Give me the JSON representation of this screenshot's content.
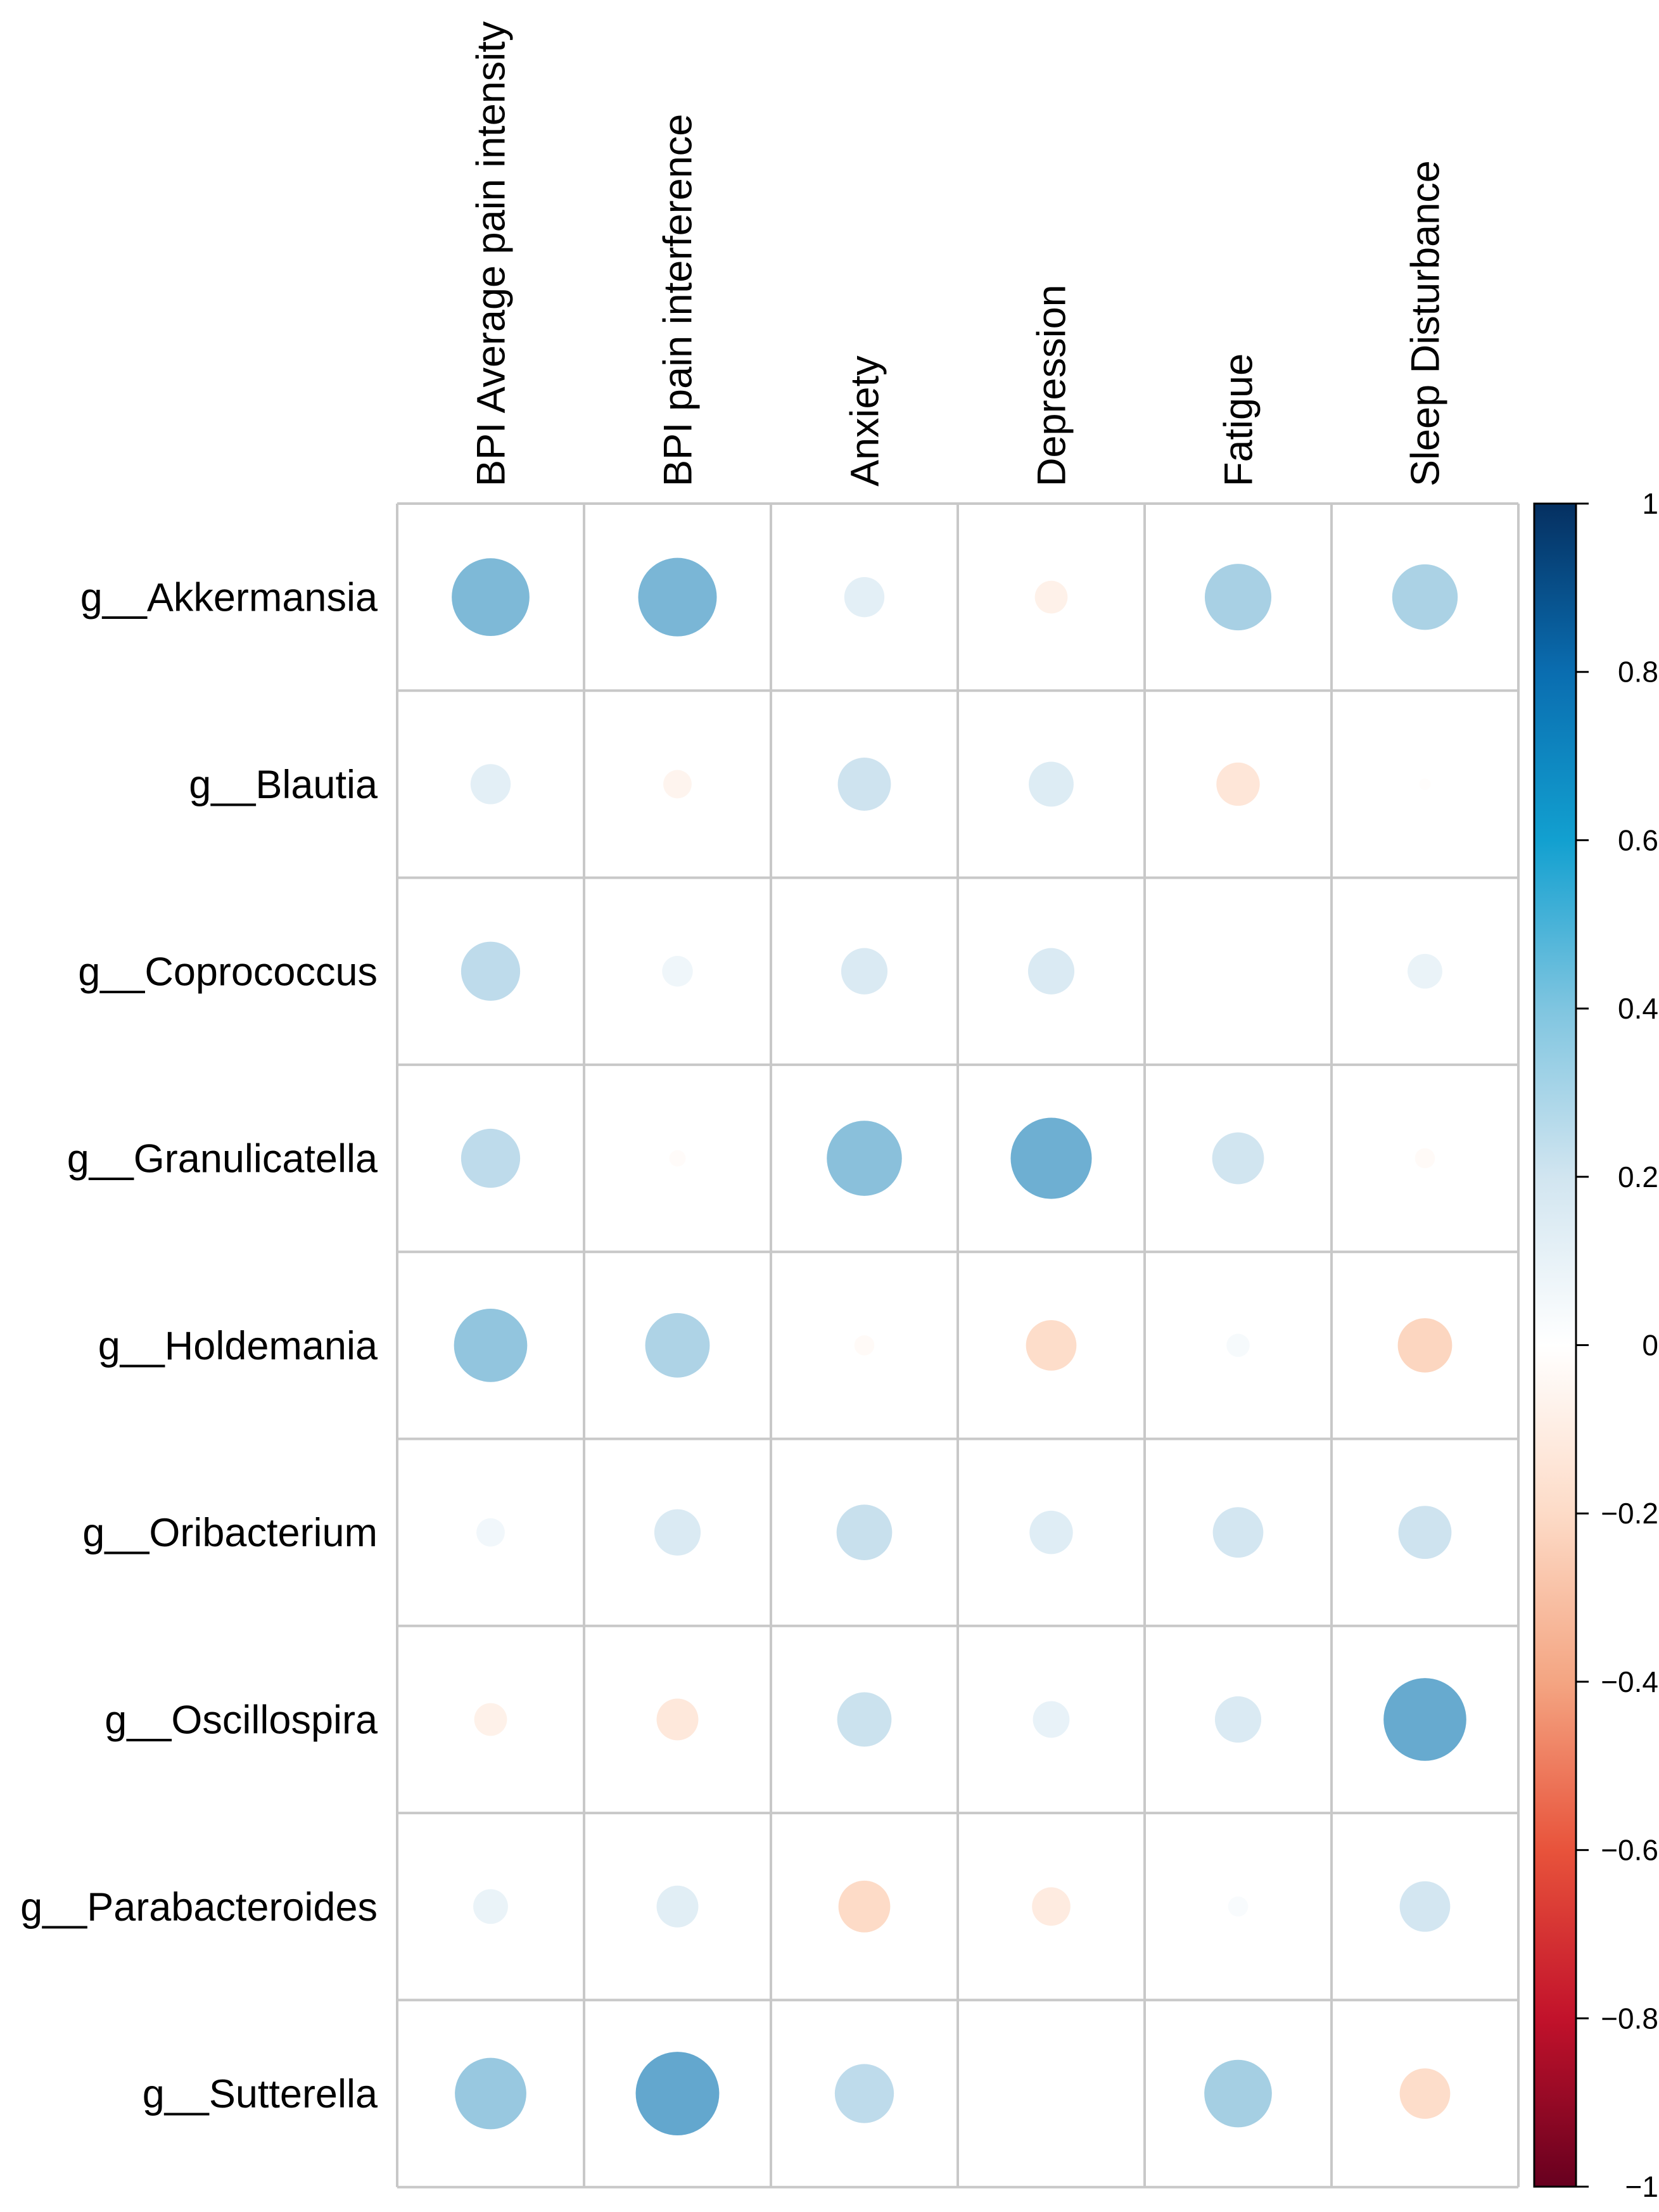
{
  "chart_data": {
    "type": "heatmap",
    "title": "",
    "rows": [
      "g__Akkermansia",
      "g__Blautia",
      "g__Coprococcus",
      "g__Granulicatella",
      "g__Holdemania",
      "g__Oribacterium",
      "g__Oscillospira",
      "g__Parabacteroides",
      "g__Sutterella"
    ],
    "columns": [
      "BPI Average pain intensity",
      "BPI pain interference",
      "Anxiety",
      "Depression",
      "Fatigue",
      "Sleep Disturbance"
    ],
    "values": [
      [
        0.45,
        0.46,
        0.12,
        -0.08,
        0.33,
        0.32
      ],
      [
        0.12,
        -0.06,
        0.21,
        0.15,
        -0.14,
        -0.01
      ],
      [
        0.26,
        0.07,
        0.16,
        0.16,
        0.0,
        0.09
      ],
      [
        0.26,
        -0.02,
        0.42,
        0.49,
        0.2,
        -0.03
      ],
      [
        0.4,
        0.31,
        -0.03,
        -0.19,
        0.04,
        -0.22
      ],
      [
        0.06,
        0.16,
        0.23,
        0.14,
        0.19,
        0.21
      ],
      [
        -0.08,
        -0.13,
        0.22,
        0.1,
        0.16,
        0.51
      ],
      [
        0.09,
        0.13,
        -0.2,
        -0.11,
        0.03,
        0.19
      ],
      [
        0.38,
        0.52,
        0.26,
        0.0,
        0.34,
        -0.19
      ]
    ],
    "color_scale": {
      "min": -1,
      "max": 1,
      "ticks": [
        1,
        0.8,
        0.6,
        0.4,
        0.2,
        0,
        -0.2,
        -0.4,
        -0.6,
        -0.8,
        -1
      ],
      "tick_labels": [
        "1",
        "0.8",
        "0.6",
        "0.4",
        "0.2",
        "0",
        "−0.2",
        "−0.4",
        "−0.6",
        "−0.8",
        "−1"
      ],
      "stops": [
        {
          "value": -1.0,
          "color": "#67001F"
        },
        {
          "value": -0.8,
          "color": "#B2182B"
        },
        {
          "value": -0.6,
          "color": "#D6604D"
        },
        {
          "value": -0.4,
          "color": "#F4A582"
        },
        {
          "value": -0.2,
          "color": "#FDDBC7"
        },
        {
          "value": 0.0,
          "color": "#FFFFFF"
        },
        {
          "value": 0.2,
          "color": "#D1E5F0"
        },
        {
          "value": 0.4,
          "color": "#92C5DE"
        },
        {
          "value": 0.6,
          "color": "#4393C3"
        },
        {
          "value": 0.8,
          "color": "#2166AC"
        },
        {
          "value": 1.0,
          "color": "#053061"
        }
      ],
      "colorbar_stops": [
        {
          "value": -1.0,
          "color": "#67001F"
        },
        {
          "value": -0.8,
          "color": "#C2122B"
        },
        {
          "value": -0.6,
          "color": "#E8533B"
        },
        {
          "value": -0.4,
          "color": "#F4A582"
        },
        {
          "value": -0.2,
          "color": "#FDDBC7"
        },
        {
          "value": 0.0,
          "color": "#FFFFFF"
        },
        {
          "value": 0.2,
          "color": "#D1E5F0"
        },
        {
          "value": 0.4,
          "color": "#7FC5E0"
        },
        {
          "value": 0.6,
          "color": "#12A0D0"
        },
        {
          "value": 0.8,
          "color": "#0A6DB0"
        },
        {
          "value": 1.0,
          "color": "#053061"
        }
      ]
    },
    "grid": true,
    "legend": "right"
  }
}
